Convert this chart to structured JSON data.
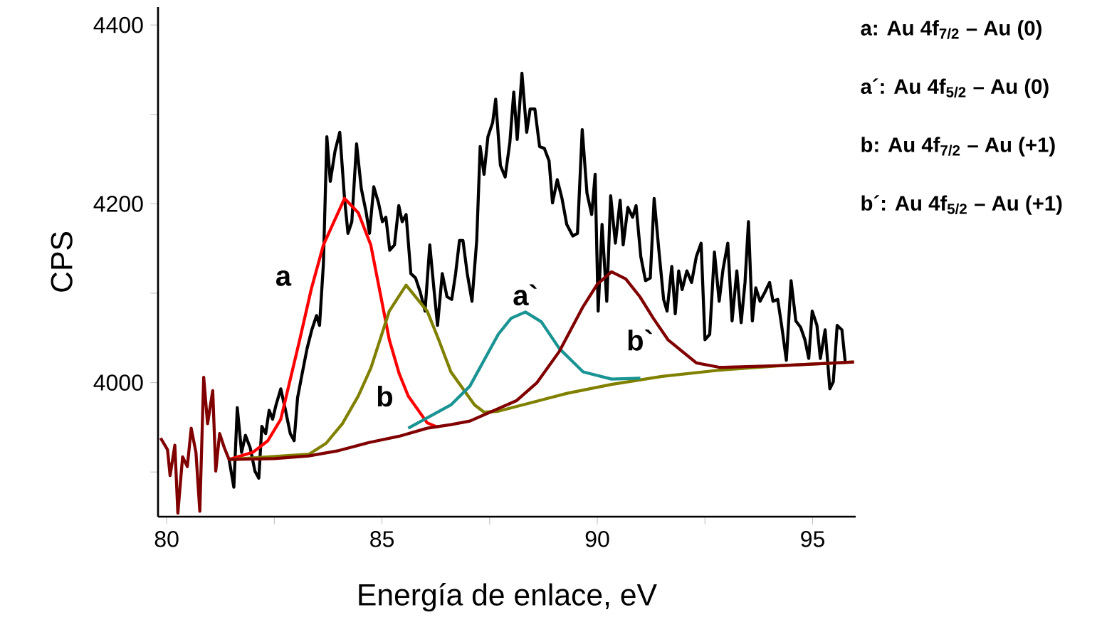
{
  "chart_data": {
    "type": "line",
    "xlabel": "Energía de enlace, eV",
    "ylabel": "CPS",
    "xlim": [
      79.8,
      96
    ],
    "ylim": [
      3850,
      4420
    ],
    "xticks": [
      80,
      {
        "value": 82.5,
        "label": null
      },
      85,
      {
        "value": 87.5,
        "label": null
      },
      90,
      {
        "value": 92.5,
        "label": null
      },
      95
    ],
    "yticks": [
      {
        "value": 3900,
        "label": null
      },
      4000,
      {
        "value": 4100,
        "label": null
      },
      4200,
      {
        "value": 4300,
        "label": null
      },
      4400
    ],
    "series": [
      {
        "color": "#000000",
        "x": [
          81.45,
          81.56,
          81.64,
          81.74,
          81.83,
          81.94,
          82.05,
          82.14,
          82.21,
          82.3,
          82.38,
          82.46,
          82.54,
          82.65,
          82.76,
          82.87,
          82.96,
          83.04,
          83.13,
          83.26,
          83.37,
          83.48,
          83.55,
          83.64,
          83.72,
          83.8,
          83.91,
          84.02,
          84.13,
          84.21,
          84.3,
          84.41,
          84.52,
          84.63,
          84.71,
          84.81,
          84.92,
          85.01,
          85.09,
          85.18,
          85.29,
          85.39,
          85.47,
          85.56,
          85.67,
          85.78,
          85.89,
          86.0,
          86.11,
          86.22,
          86.29,
          86.4,
          86.51,
          86.62,
          86.71,
          86.8,
          86.88,
          86.98,
          87.09,
          87.2,
          87.28,
          87.37,
          87.46,
          87.57,
          87.64,
          87.75,
          87.86,
          87.97,
          88.06,
          88.14,
          88.25,
          88.36,
          88.44,
          88.55,
          88.66,
          88.77,
          88.88,
          88.96,
          89.07,
          89.18,
          89.29,
          89.43,
          89.54,
          89.65,
          89.76,
          89.87,
          89.95,
          90.02,
          90.11,
          90.22,
          90.31,
          90.42,
          90.53,
          90.6,
          90.71,
          90.82,
          90.9,
          91.01,
          91.12,
          91.23,
          91.32,
          91.43,
          91.54,
          91.62,
          91.73,
          91.81,
          91.89,
          91.97,
          92.08,
          92.19,
          92.3,
          92.41,
          92.5,
          92.61,
          92.72,
          92.83,
          92.92,
          93.03,
          93.13,
          93.24,
          93.34,
          93.43,
          93.51,
          93.6,
          93.68,
          93.78,
          93.89,
          94.0,
          94.08,
          94.19,
          94.28,
          94.39,
          94.5,
          94.61,
          94.72,
          94.82,
          94.91,
          94.99,
          95.1,
          95.18,
          95.29,
          95.4,
          95.48,
          95.57,
          95.68,
          95.76
        ],
        "values": [
          3914,
          3883,
          3972,
          3922,
          3941,
          3927,
          3901,
          3893,
          3951,
          3943,
          3969,
          3959,
          3975,
          3993,
          3969,
          3943,
          3935,
          3983,
          4006,
          4038,
          4059,
          4075,
          4064,
          4133,
          4275,
          4225,
          4259,
          4280,
          4206,
          4167,
          4180,
          4267,
          4217,
          4191,
          4167,
          4219,
          4201,
          4180,
          4185,
          4148,
          4154,
          4198,
          4180,
          4188,
          4122,
          4117,
          4101,
          4080,
          4154,
          4098,
          4064,
          4122,
          4096,
          4093,
          4122,
          4159,
          4159,
          4122,
          4091,
          4159,
          4264,
          4233,
          4275,
          4291,
          4317,
          4243,
          4230,
          4269,
          4325,
          4272,
          4346,
          4280,
          4306,
          4306,
          4264,
          4262,
          4248,
          4201,
          4227,
          4206,
          4177,
          4164,
          4167,
          4283,
          4212,
          4188,
          4233,
          4080,
          4177,
          4091,
          4209,
          4156,
          4204,
          4154,
          4196,
          4185,
          4198,
          4141,
          4114,
          4117,
          4206,
          4148,
          4093,
          4080,
          4130,
          4077,
          4125,
          4104,
          4125,
          4112,
          4141,
          4156,
          4048,
          4054,
          4146,
          4091,
          4127,
          4156,
          4069,
          4125,
          4067,
          4112,
          4180,
          4069,
          4106,
          4091,
          4101,
          4112,
          4091,
          4093,
          4064,
          4025,
          4114,
          4069,
          4062,
          4048,
          4027,
          4080,
          4064,
          4027,
          4059,
          3993,
          4001,
          4064,
          4059,
          4022
        ]
      },
      {
        "name": "a",
        "color": "#ff0000",
        "x": [
          81.45,
          82.0,
          82.35,
          82.65,
          83.09,
          83.36,
          83.64,
          84.13,
          84.45,
          84.74,
          85.17,
          85.4,
          85.61,
          86.05,
          86.3
        ],
        "values": [
          3914,
          3922,
          3935,
          3959,
          4048,
          4105,
          4154,
          4206,
          4190,
          4154,
          4048,
          4010,
          3985,
          3955,
          3950
        ]
      },
      {
        "name": "b",
        "color": "#808000",
        "x": [
          81.45,
          83.31,
          83.7,
          84.08,
          84.45,
          84.74,
          85.17,
          85.56,
          86.05,
          86.3,
          86.6,
          87.15,
          87.37,
          87.7,
          88.5,
          89.3,
          90.33,
          91.5,
          92.85,
          94.3,
          95.96
        ],
        "values": [
          3914,
          3920,
          3932,
          3954,
          3985,
          4016,
          4080,
          4109,
          4080,
          4050,
          4012,
          3975,
          3967,
          3968,
          3978,
          3988,
          3998,
          4007,
          4014,
          4019,
          4023
        ]
      },
      {
        "name": "a`",
        "color": "#1a9393",
        "x": [
          85.61,
          86.6,
          87.04,
          87.7,
          88.0,
          88.33,
          88.7,
          89.12,
          89.67,
          90.33,
          91.0
        ],
        "values": [
          3949,
          3975,
          3996,
          4054,
          4072,
          4079,
          4068,
          4038,
          4012,
          4004,
          4005
        ]
      },
      {
        "name": "b`",
        "color": "#800000",
        "x": [
          79.86,
          80.02,
          80.08,
          80.19,
          80.26,
          80.37,
          80.48,
          80.57,
          80.68,
          80.77,
          80.86,
          80.95,
          81.07,
          81.14,
          81.23,
          81.34,
          81.45,
          82.5,
          83.3,
          84.0,
          84.7,
          85.4,
          86.05,
          86.6,
          87.04,
          88.13,
          88.6,
          89.12,
          89.67,
          90.0,
          90.33,
          90.66,
          90.99,
          91.3,
          91.64,
          92.3,
          92.85,
          94.3,
          95.96
        ],
        "values": [
          3938,
          3925,
          3896,
          3930,
          3854,
          3917,
          3906,
          3949,
          3922,
          3856,
          4006,
          3954,
          3991,
          3901,
          3943,
          3927,
          3914,
          3915,
          3918,
          3924,
          3933,
          3940,
          3949,
          3953,
          3957,
          3980,
          4000,
          4035,
          4085,
          4110,
          4124,
          4116,
          4096,
          4072,
          4048,
          4022,
          4017,
          4019,
          4023
        ]
      }
    ],
    "annotations": [
      "a: Au 4f$_{7/2}$ – Au (0)",
      "a´: Au 4f$_{5/2}$ – Au (0)",
      "b: Au 4f$_{7/2}$ – Au (+1)",
      "b´: Au 4f$_{5/2}$ – Au (+1)"
    ]
  }
}
